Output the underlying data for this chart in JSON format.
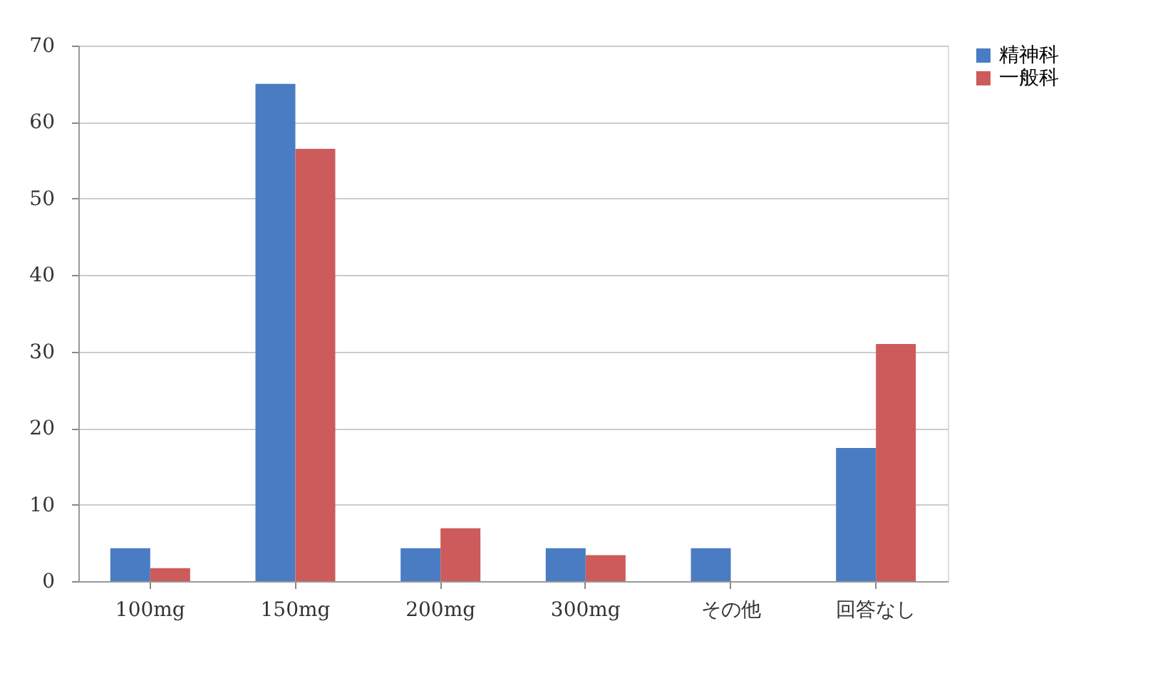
{
  "chart_data": {
    "type": "bar",
    "categories": [
      "100mg",
      "150mg",
      "200mg",
      "300mg",
      "その他",
      "回答なし"
    ],
    "series": [
      {
        "name": "精神科",
        "color": "#4a7cc4",
        "values": [
          4.3,
          65,
          4.3,
          4.3,
          4.3,
          17.4
        ]
      },
      {
        "name": "一般科",
        "color": "#cd5b5b",
        "values": [
          1.7,
          56.5,
          6.9,
          3.4,
          null,
          31
        ]
      }
    ],
    "ylim": [
      0,
      70
    ],
    "yticks": [
      0,
      10,
      20,
      30,
      40,
      50,
      60,
      70
    ],
    "grid": "y",
    "legend": "right"
  }
}
